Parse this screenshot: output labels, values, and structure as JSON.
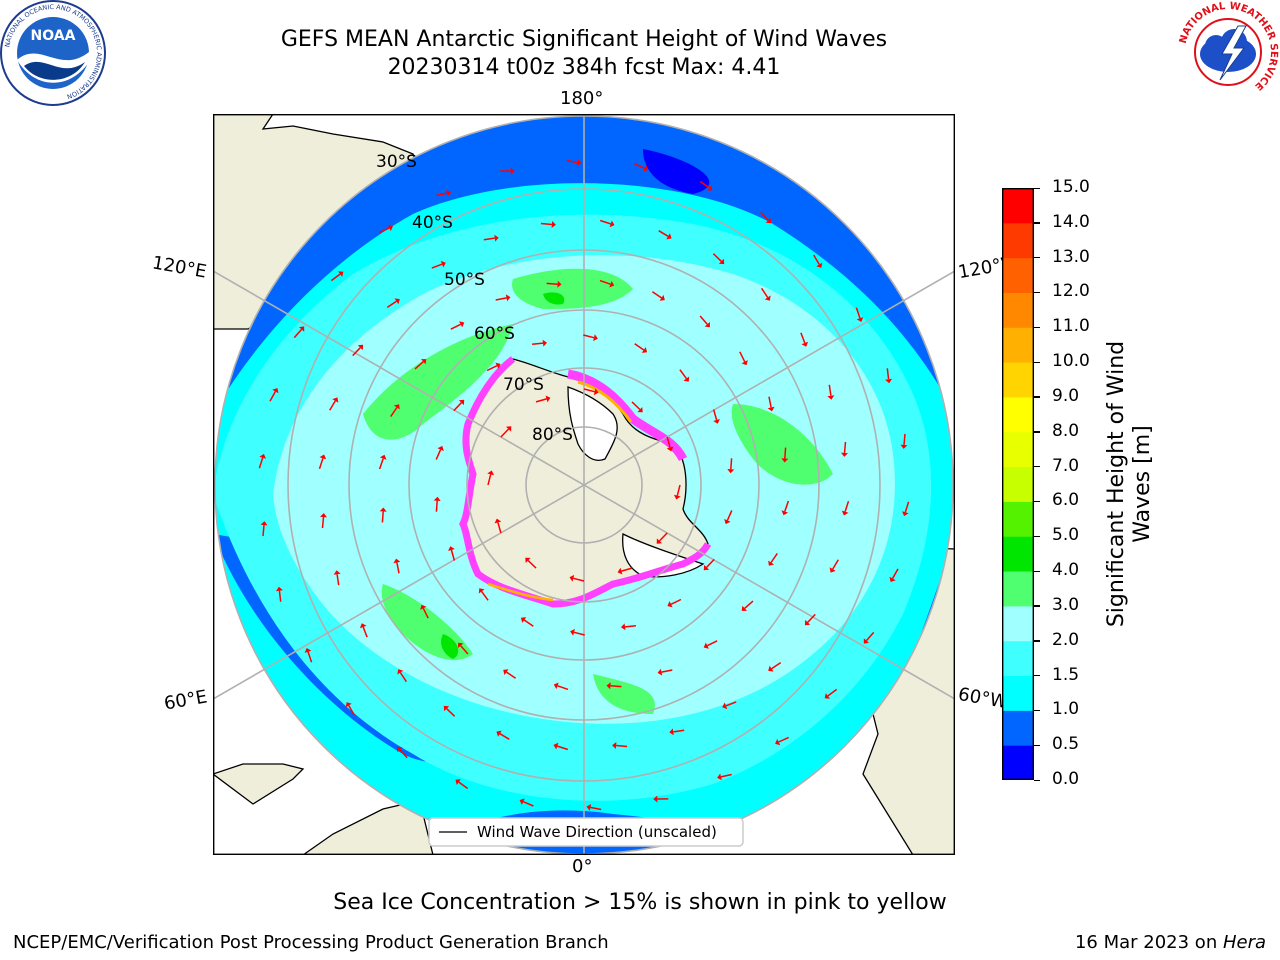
{
  "title": {
    "line1": "GEFS MEAN Antarctic Significant Height of Wind Waves",
    "line2": "20230314 t00z 384h fcst   Max: 4.41"
  },
  "map": {
    "projection": "south-polar-stereographic",
    "longitude_labels": {
      "top": "180°",
      "bottom": "0°",
      "left_upper": "120°E",
      "right_upper": "120°W",
      "left_lower": "60°E",
      "right_lower": "60°W"
    },
    "latitude_labels": [
      "30°S",
      "40°S",
      "50°S",
      "60°S",
      "70°S",
      "80°S"
    ],
    "legend": "Wind Wave Direction (unscaled)",
    "colors": {
      "land": "#efeedb",
      "ice_sheet": "#ffffff",
      "sea_ice": [
        "#ff40ff",
        "#ffb300",
        "#ffff00"
      ],
      "arrows": "#ff0000",
      "graticule": "#b0b0b0"
    }
  },
  "colorbar": {
    "label": "Significant Height of Wind Waves [m]",
    "label_line1": "Significant Height of Wind",
    "label_line2": "Waves [m]",
    "ticks": [
      "15.0",
      "14.0",
      "13.0",
      "12.0",
      "11.0",
      "10.0",
      "9.0",
      "8.0",
      "7.0",
      "6.0",
      "5.0",
      "4.0",
      "3.0",
      "2.0",
      "1.5",
      "1.0",
      "0.5",
      "0.0"
    ],
    "bands_bottom_to_top": [
      "#0000ff",
      "#0066ff",
      "#00ffff",
      "#40ffff",
      "#a0ffff",
      "#50ff70",
      "#00e600",
      "#55f200",
      "#c8ff00",
      "#e8ff00",
      "#ffff00",
      "#ffd400",
      "#ffb000",
      "#ff8800",
      "#ff6000",
      "#ff3a00",
      "#ff0000"
    ],
    "value_range": [
      0.0,
      15.0
    ]
  },
  "caption": "Sea Ice Concentration > 15% is shown in pink to yellow",
  "footer": {
    "left": "NCEP/EMC/Verification Post Processing Product Generation Branch",
    "right_prefix": "16 Mar 2023 on ",
    "right_italic": "Hera"
  },
  "logos": {
    "noaa_text": "NOAA",
    "noaa_ring": "NATIONAL OCEANIC AND ATMOSPHERIC ADMINISTRATION",
    "nws_ring": "NATIONAL WEATHER SERVICE"
  }
}
